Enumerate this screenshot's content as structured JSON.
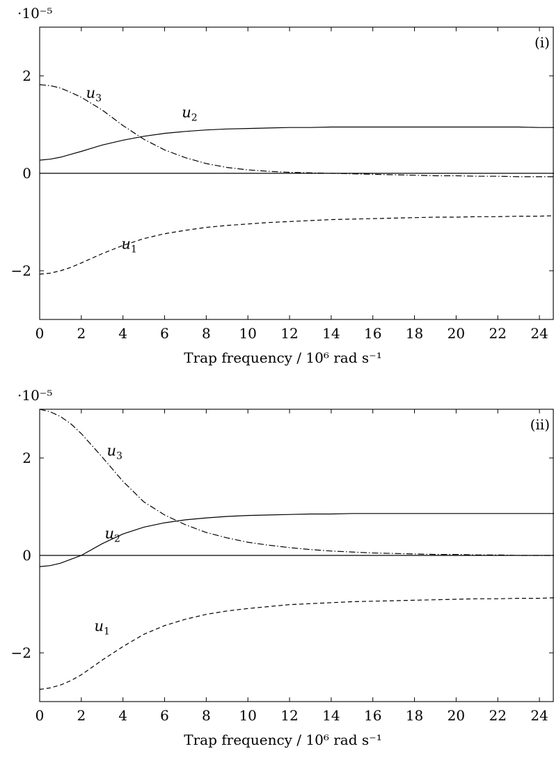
{
  "chart_data": [
    {
      "type": "line",
      "panel_label": "(i)",
      "xlabel": "Trap frequency / 10⁶ rad s⁻¹",
      "ylabel": "",
      "y_scale_label": "·10⁻⁵",
      "xlim": [
        0,
        24.7
      ],
      "ylim": [
        -3,
        3
      ],
      "xticks": [
        0,
        2,
        4,
        6,
        8,
        10,
        12,
        14,
        16,
        18,
        20,
        22,
        24
      ],
      "yticks": [
        -2,
        0,
        2
      ],
      "grid": false,
      "x": [
        0,
        0.5,
        1,
        1.5,
        2,
        3,
        4,
        5,
        6,
        7,
        8,
        9,
        10,
        11,
        12,
        13,
        14,
        15,
        16,
        17,
        18,
        19,
        20,
        21,
        22,
        23,
        24,
        24.7
      ],
      "series": [
        {
          "name": "u1",
          "style": "dashed",
          "values": [
            -2.07,
            -2.05,
            -2.0,
            -1.93,
            -1.84,
            -1.65,
            -1.48,
            -1.34,
            -1.24,
            -1.17,
            -1.11,
            -1.07,
            -1.04,
            -1.01,
            -0.99,
            -0.97,
            -0.95,
            -0.94,
            -0.93,
            -0.92,
            -0.91,
            -0.9,
            -0.9,
            -0.89,
            -0.89,
            -0.88,
            -0.88,
            -0.87
          ]
        },
        {
          "name": "u2",
          "style": "solid",
          "values": [
            0.27,
            0.29,
            0.33,
            0.39,
            0.45,
            0.58,
            0.68,
            0.76,
            0.82,
            0.86,
            0.89,
            0.91,
            0.92,
            0.93,
            0.94,
            0.94,
            0.95,
            0.95,
            0.95,
            0.95,
            0.95,
            0.95,
            0.95,
            0.95,
            0.95,
            0.95,
            0.94,
            0.94
          ]
        },
        {
          "name": "u3",
          "style": "dashdot",
          "values": [
            1.82,
            1.8,
            1.75,
            1.66,
            1.56,
            1.3,
            0.98,
            0.7,
            0.48,
            0.32,
            0.2,
            0.12,
            0.07,
            0.04,
            0.02,
            0.01,
            0.0,
            -0.01,
            -0.02,
            -0.03,
            -0.04,
            -0.05,
            -0.05,
            -0.06,
            -0.06,
            -0.07,
            -0.07,
            -0.07
          ]
        },
        {
          "name": "",
          "style": "solid",
          "values": [
            0,
            0,
            0,
            0,
            0,
            0,
            0,
            0,
            0,
            0,
            0,
            0,
            0,
            0,
            0,
            0,
            0,
            0,
            0,
            0,
            0,
            0,
            0,
            0,
            0,
            0,
            0,
            0
          ]
        }
      ]
    },
    {
      "type": "line",
      "panel_label": "(ii)",
      "xlabel": "Trap frequency / 10⁶ rad s⁻¹",
      "ylabel": "",
      "y_scale_label": "·10⁻⁵",
      "xlim": [
        0,
        24.7
      ],
      "ylim": [
        -3,
        3
      ],
      "xticks": [
        0,
        2,
        4,
        6,
        8,
        10,
        12,
        14,
        16,
        18,
        20,
        22,
        24
      ],
      "yticks": [
        -2,
        0,
        2
      ],
      "grid": false,
      "x": [
        0,
        0.5,
        1,
        1.5,
        2,
        3,
        4,
        5,
        6,
        7,
        8,
        9,
        10,
        11,
        12,
        13,
        14,
        15,
        16,
        17,
        18,
        19,
        20,
        21,
        22,
        23,
        24,
        24.7
      ],
      "series": [
        {
          "name": "u1",
          "style": "dashed",
          "values": [
            -2.75,
            -2.72,
            -2.66,
            -2.57,
            -2.45,
            -2.15,
            -1.87,
            -1.62,
            -1.44,
            -1.31,
            -1.21,
            -1.14,
            -1.09,
            -1.05,
            -1.01,
            -0.99,
            -0.97,
            -0.95,
            -0.94,
            -0.93,
            -0.92,
            -0.91,
            -0.9,
            -0.89,
            -0.89,
            -0.88,
            -0.88,
            -0.87
          ]
        },
        {
          "name": "u2",
          "style": "solid",
          "values": [
            -0.23,
            -0.21,
            -0.16,
            -0.08,
            0.0,
            0.24,
            0.44,
            0.58,
            0.67,
            0.73,
            0.77,
            0.8,
            0.82,
            0.83,
            0.84,
            0.85,
            0.85,
            0.86,
            0.86,
            0.86,
            0.86,
            0.86,
            0.86,
            0.86,
            0.86,
            0.86,
            0.86,
            0.86
          ]
        },
        {
          "name": "u3",
          "style": "dashdot",
          "values": [
            3.0,
            2.95,
            2.85,
            2.7,
            2.5,
            2.02,
            1.52,
            1.1,
            0.83,
            0.63,
            0.47,
            0.36,
            0.27,
            0.21,
            0.16,
            0.12,
            0.09,
            0.07,
            0.05,
            0.04,
            0.03,
            0.02,
            0.02,
            0.01,
            0.01,
            0.0,
            0.0,
            0.0
          ]
        },
        {
          "name": "",
          "style": "solid",
          "values": [
            0,
            0,
            0,
            0,
            0,
            0,
            0,
            0,
            0,
            0,
            0,
            0,
            0,
            0,
            0,
            0,
            0,
            0,
            0,
            0,
            0,
            0,
            0,
            0,
            0,
            0,
            0,
            0
          ]
        }
      ]
    }
  ]
}
